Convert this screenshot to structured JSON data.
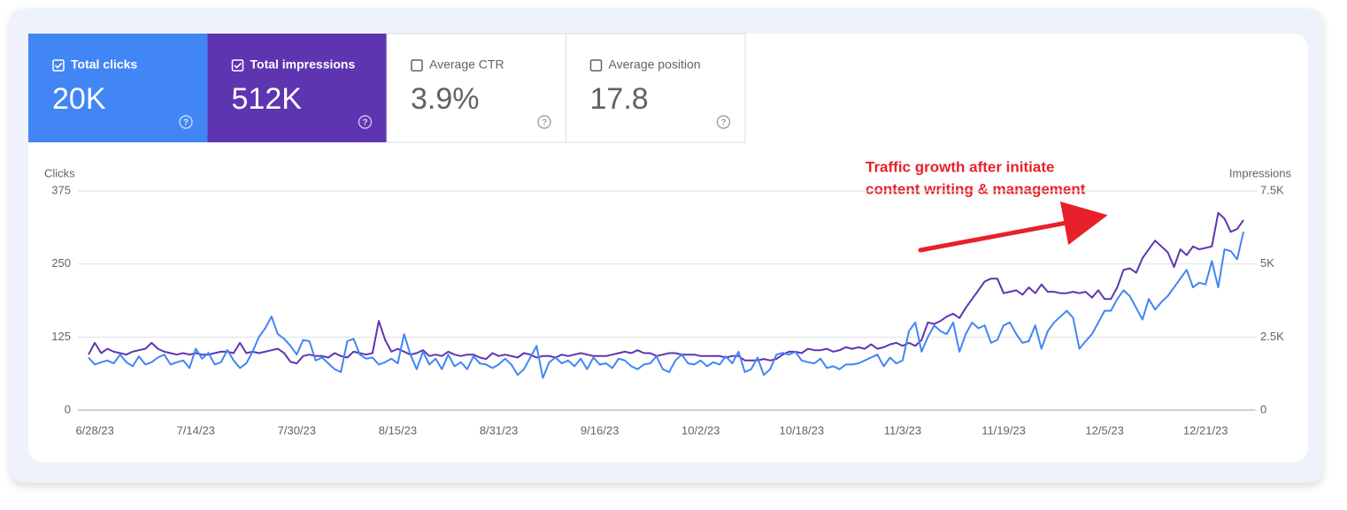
{
  "cards": [
    {
      "label": "Total clicks",
      "value": "20K",
      "checked": true,
      "color": "#4285f4"
    },
    {
      "label": "Total impressions",
      "value": "512K",
      "checked": true,
      "color": "#5e35b1"
    },
    {
      "label": "Average CTR",
      "value": "3.9%",
      "checked": false,
      "color": "#ffffff"
    },
    {
      "label": "Average position",
      "value": "17.8",
      "checked": false,
      "color": "#ffffff"
    }
  ],
  "chart_data": {
    "type": "line",
    "y_label": "Clicks",
    "y2_label": "Impressions",
    "annotation": [
      "Traffic growth after initiate",
      "content writing & management"
    ],
    "grid": true,
    "ylim": [
      0,
      375
    ],
    "yticks": [
      0,
      125,
      250,
      375
    ],
    "y2lim": [
      0,
      7500
    ],
    "y2ticks": [
      {
        "value": 0,
        "label": "0"
      },
      {
        "value": 2500,
        "label": "2.5K"
      },
      {
        "value": 5000,
        "label": "5K"
      },
      {
        "value": 7500,
        "label": "7.5K"
      }
    ],
    "categories": [
      null,
      "6/28/23",
      null,
      null,
      null,
      null,
      null,
      null,
      null,
      null,
      null,
      null,
      null,
      null,
      null,
      null,
      null,
      "7/14/23",
      null,
      null,
      null,
      null,
      null,
      null,
      null,
      null,
      null,
      null,
      null,
      null,
      null,
      null,
      null,
      "7/30/23",
      null,
      null,
      null,
      null,
      null,
      null,
      null,
      null,
      null,
      null,
      null,
      null,
      null,
      null,
      null,
      "8/15/23",
      null,
      null,
      null,
      null,
      null,
      null,
      null,
      null,
      null,
      null,
      null,
      null,
      null,
      null,
      null,
      "8/31/23",
      null,
      null,
      null,
      null,
      null,
      null,
      null,
      null,
      null,
      null,
      null,
      null,
      null,
      null,
      null,
      "9/16/23",
      null,
      null,
      null,
      null,
      null,
      null,
      null,
      null,
      null,
      null,
      null,
      null,
      null,
      null,
      null,
      "10/2/23",
      null,
      null,
      null,
      null,
      null,
      null,
      null,
      null,
      null,
      null,
      null,
      null,
      null,
      null,
      null,
      "10/18/23",
      null,
      null,
      null,
      null,
      null,
      null,
      null,
      null,
      null,
      null,
      null,
      null,
      null,
      null,
      null,
      "11/3/23",
      null,
      null,
      null,
      null,
      null,
      null,
      null,
      null,
      null,
      null,
      null,
      null,
      null,
      null,
      null,
      "11/19/23",
      null,
      null,
      null,
      null,
      null,
      null,
      null,
      null,
      null,
      null,
      null,
      null,
      null,
      null,
      null,
      "12/5/23",
      null,
      null,
      null,
      null,
      null,
      null,
      null,
      null,
      null,
      null,
      null,
      null,
      null,
      null,
      null,
      "12/21/23",
      null,
      null,
      null,
      null,
      null,
      null
    ],
    "series": [
      {
        "color": "#4285f4",
        "axis": "y",
        "values": [
          90,
          78,
          82,
          85,
          80,
          95,
          82,
          75,
          92,
          78,
          82,
          90,
          95,
          78,
          82,
          85,
          72,
          105,
          88,
          98,
          78,
          82,
          103,
          85,
          72,
          80,
          100,
          125,
          140,
          160,
          130,
          122,
          110,
          95,
          120,
          118,
          85,
          90,
          80,
          70,
          65,
          118,
          122,
          95,
          88,
          90,
          78,
          82,
          88,
          80,
          130,
          95,
          70,
          100,
          78,
          88,
          70,
          95,
          75,
          82,
          70,
          92,
          80,
          78,
          72,
          78,
          88,
          78,
          60,
          70,
          90,
          110,
          55,
          82,
          90,
          80,
          85,
          75,
          88,
          70,
          90,
          78,
          80,
          72,
          88,
          85,
          75,
          70,
          78,
          80,
          92,
          70,
          65,
          85,
          95,
          80,
          78,
          85,
          75,
          82,
          78,
          92,
          80,
          100,
          65,
          70,
          90,
          60,
          70,
          95,
          98,
          95,
          100,
          85,
          82,
          80,
          88,
          72,
          75,
          70,
          78,
          78,
          80,
          85,
          90,
          95,
          75,
          90,
          80,
          85,
          135,
          150,
          100,
          125,
          145,
          135,
          130,
          150,
          100,
          130,
          150,
          140,
          145,
          115,
          120,
          145,
          150,
          130,
          115,
          118,
          145,
          105,
          135,
          150,
          160,
          170,
          158,
          105,
          118,
          130,
          150,
          170,
          170,
          190,
          205,
          195,
          175,
          155,
          190,
          172,
          185,
          195,
          210,
          225,
          240,
          210,
          218,
          215,
          255,
          210,
          275,
          272,
          258,
          305
        ]
      },
      {
        "color": "#5e35b1",
        "axis": "y2",
        "values": [
          1900,
          2300,
          1950,
          2100,
          2000,
          1950,
          1900,
          2000,
          2050,
          2100,
          2300,
          2100,
          2000,
          1950,
          1900,
          1950,
          1900,
          1950,
          1900,
          1900,
          1950,
          2000,
          2000,
          1950,
          2300,
          1950,
          2000,
          1950,
          2000,
          2050,
          2100,
          1950,
          1650,
          1600,
          1850,
          1900,
          1850,
          1850,
          1800,
          1950,
          1850,
          1800,
          2000,
          1950,
          1900,
          1950,
          3050,
          2400,
          2000,
          2100,
          2000,
          1900,
          1950,
          2050,
          1850,
          1900,
          1850,
          2000,
          1900,
          1850,
          1900,
          1900,
          1800,
          1750,
          1950,
          1850,
          1900,
          1850,
          1800,
          1950,
          1900,
          1800,
          1850,
          1850,
          1800,
          1900,
          1850,
          1900,
          1950,
          1900,
          1850,
          1850,
          1850,
          1900,
          1950,
          2000,
          1950,
          2050,
          1950,
          1950,
          1850,
          1900,
          1950,
          1950,
          1900,
          1900,
          1900,
          1850,
          1850,
          1850,
          1850,
          1800,
          1850,
          1850,
          1700,
          1700,
          1700,
          1750,
          1700,
          1750,
          1900,
          2000,
          2000,
          1950,
          2100,
          2050,
          2050,
          2100,
          2000,
          2050,
          2150,
          2100,
          2150,
          2100,
          2250,
          2100,
          2150,
          2250,
          2300,
          2200,
          2300,
          2200,
          2400,
          3000,
          2950,
          3050,
          3200,
          3300,
          3150,
          3500,
          3800,
          4100,
          4400,
          4500,
          4500,
          4000,
          4050,
          4100,
          3950,
          4200,
          4000,
          4300,
          4050,
          4050,
          4000,
          4000,
          4050,
          4000,
          4050,
          3850,
          4100,
          3800,
          3800,
          4200,
          4800,
          4850,
          4700,
          5200,
          5500,
          5800,
          5600,
          5400,
          4900,
          5500,
          5300,
          5600,
          5500,
          5550,
          5600,
          6750,
          6550,
          6100,
          6200,
          6500
        ]
      }
    ]
  }
}
